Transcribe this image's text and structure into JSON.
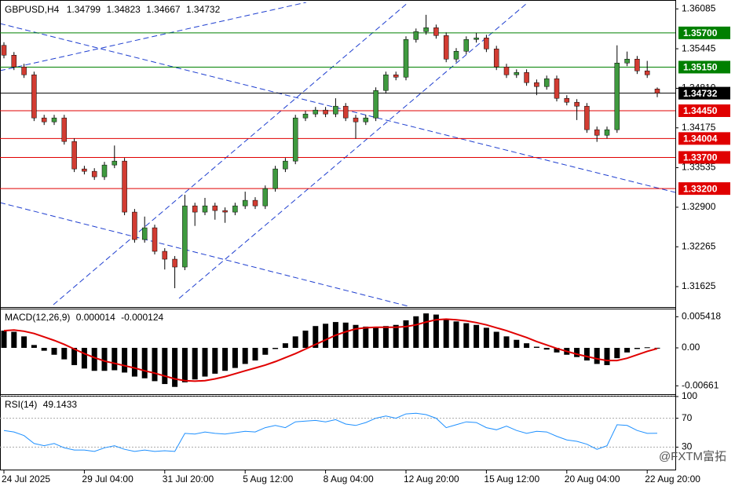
{
  "chart_data": [
    {
      "type": "candlestick",
      "symbol": "GBPUSD,H4",
      "categories": [
        "24 Jul 2025",
        null,
        null,
        null,
        null,
        null,
        null,
        null,
        "29 Jul 04:00",
        null,
        null,
        null,
        null,
        null,
        null,
        null,
        "31 Jul 20:00",
        null,
        null,
        null,
        null,
        null,
        null,
        null,
        "5 Aug 12:00",
        null,
        null,
        null,
        null,
        null,
        null,
        null,
        "8 Aug 04:00",
        null,
        null,
        null,
        null,
        null,
        null,
        null,
        "12 Aug 20:00",
        null,
        null,
        null,
        null,
        null,
        null,
        null,
        "15 Aug 12:00",
        null,
        null,
        null,
        null,
        null,
        null,
        null,
        "20 Aug 04:00",
        null,
        null,
        null,
        null,
        null,
        null,
        null,
        "22 Aug 20:00",
        null
      ],
      "open": [
        1.355,
        1.35342,
        1.35153,
        1.35027,
        1.34334,
        1.34271,
        1.34334,
        1.33956,
        1.33515,
        1.33477,
        1.33389,
        1.33578,
        1.33641,
        1.32822,
        1.32381,
        1.3257,
        1.32192,
        1.32066,
        1.3194,
        1.32922,
        1.32822,
        1.32922,
        1.32847,
        1.32822,
        1.32922,
        1.33011,
        1.32922,
        1.332,
        1.33515,
        1.33641,
        1.34334,
        1.34397,
        1.3446,
        1.34397,
        1.34523,
        1.34334,
        1.34271,
        1.34334,
        1.34775,
        1.35027,
        1.34989,
        1.35594,
        1.3572,
        1.35783,
        1.35657,
        1.35279,
        1.35405,
        1.35594,
        1.35619,
        1.35442,
        1.35153,
        1.35027,
        1.35064,
        1.34901,
        1.34838,
        1.34964,
        1.34649,
        1.34586,
        1.34523,
        1.34145,
        1.34056,
        1.34145,
        1.35216,
        1.35279,
        1.3509,
        1.34799
      ],
      "high": [
        1.3555,
        1.35392,
        1.35203,
        1.35077,
        1.34384,
        1.34384,
        1.34384,
        1.34006,
        1.33565,
        1.33527,
        1.33628,
        1.33891,
        1.33691,
        1.32872,
        1.3275,
        1.3262,
        1.32242,
        1.32116,
        1.331,
        1.32972,
        1.3305,
        1.32972,
        1.32897,
        1.32972,
        1.3315,
        1.33061,
        1.3325,
        1.33565,
        1.33691,
        1.34384,
        1.34447,
        1.3451,
        1.3451,
        1.3465,
        1.34573,
        1.34384,
        1.34384,
        1.34825,
        1.35077,
        1.35077,
        1.35644,
        1.3577,
        1.3599,
        1.35833,
        1.35707,
        1.35455,
        1.35644,
        1.357,
        1.35669,
        1.35492,
        1.35203,
        1.35114,
        1.35114,
        1.34951,
        1.35014,
        1.35014,
        1.34699,
        1.34636,
        1.34573,
        1.34195,
        1.34195,
        1.355,
        1.354,
        1.35329,
        1.3525,
        1.34823
      ],
      "low": [
        1.35292,
        1.35103,
        1.34977,
        1.34284,
        1.34221,
        1.34221,
        1.33906,
        1.33465,
        1.33427,
        1.33339,
        1.33339,
        1.33528,
        1.32772,
        1.32331,
        1.32331,
        1.32142,
        1.319,
        1.316,
        1.3189,
        1.326,
        1.32772,
        1.327,
        1.3265,
        1.32772,
        1.32872,
        1.32872,
        1.32872,
        1.3315,
        1.33465,
        1.33591,
        1.34284,
        1.34347,
        1.34347,
        1.34347,
        1.34284,
        1.34,
        1.34221,
        1.34284,
        1.34725,
        1.34939,
        1.34939,
        1.35544,
        1.3567,
        1.35607,
        1.35229,
        1.35229,
        1.35355,
        1.35544,
        1.35392,
        1.35103,
        1.34977,
        1.34977,
        1.34851,
        1.347,
        1.34788,
        1.34599,
        1.34536,
        1.343,
        1.34095,
        1.3395,
        1.34006,
        1.34095,
        1.35166,
        1.3504,
        1.34977,
        1.34667
      ],
      "close": [
        1.35342,
        1.35153,
        1.35027,
        1.34334,
        1.34271,
        1.34334,
        1.33956,
        1.33515,
        1.33477,
        1.33389,
        1.33578,
        1.33641,
        1.32822,
        1.32381,
        1.3257,
        1.32192,
        1.32066,
        1.3194,
        1.32922,
        1.32822,
        1.32922,
        1.32847,
        1.32822,
        1.32922,
        1.33011,
        1.32922,
        1.332,
        1.33515,
        1.33641,
        1.34334,
        1.34397,
        1.3446,
        1.34397,
        1.34523,
        1.34334,
        1.34271,
        1.34334,
        1.34775,
        1.35027,
        1.34989,
        1.35594,
        1.3572,
        1.35783,
        1.35657,
        1.35279,
        1.35405,
        1.35594,
        1.35619,
        1.35442,
        1.35153,
        1.35027,
        1.35064,
        1.34901,
        1.34838,
        1.34964,
        1.34649,
        1.34586,
        1.34523,
        1.34145,
        1.34056,
        1.34145,
        1.35216,
        1.35279,
        1.3509,
        1.35027,
        1.34732
      ],
      "up_color": "#3f9a3f",
      "down_color": "#d23c32",
      "wick_color": "#000000",
      "ylim": [
        1.3131,
        1.3619
      ],
      "yticks": [
        1.36085,
        1.35445,
        {
          "value": 1.3481,
          "label": "1.34810"
        },
        1.34175,
        1.33535,
        {
          "value": 1.329,
          "label": "1.32900"
        },
        1.32265,
        1.31625
      ],
      "levels": [
        {
          "value": 1.357,
          "label": "1.35700",
          "color": "#008000"
        },
        {
          "value": 1.3515,
          "label": "1.35150",
          "color": "#008000"
        },
        {
          "value": 1.34732,
          "color": "#000000"
        },
        {
          "value": 1.3445,
          "label": "1.34450",
          "color": "#e00000"
        },
        {
          "value": 1.34004,
          "color": "#e00000"
        },
        {
          "value": 1.337,
          "label": "1.33700",
          "color": "#e00000"
        },
        {
          "value": 1.332,
          "label": "1.33200",
          "color": "#e00000"
        }
      ]
    },
    {
      "type": "macd",
      "title": "MACD(12,26,9)",
      "histogram": [
        0.003,
        0.0028,
        0.002,
        0.0005,
        -0.0005,
        -0.0012,
        -0.002,
        -0.003,
        -0.0036,
        -0.004,
        -0.004,
        -0.0039,
        -0.0043,
        -0.005,
        -0.0053,
        -0.0058,
        -0.0063,
        -0.0068,
        -0.006,
        -0.0055,
        -0.005,
        -0.0045,
        -0.004,
        -0.0035,
        -0.0028,
        -0.0022,
        -0.0012,
        -0.0002,
        0.0008,
        0.002,
        0.003,
        0.0038,
        0.0042,
        0.0045,
        0.0044,
        0.004,
        0.0037,
        0.0036,
        0.0038,
        0.004,
        0.0048,
        0.0055,
        0.006,
        0.0058,
        0.005,
        0.0046,
        0.0043,
        0.004,
        0.0035,
        0.0028,
        0.002,
        0.0014,
        0.0008,
        0.0002,
        -0.0003,
        -0.0008,
        -0.0012,
        -0.0016,
        -0.0022,
        -0.0028,
        -0.003,
        -0.0018,
        -0.0008,
        -0.0002,
        0.0001,
        1.4e-05
      ],
      "signal": [
        0.003,
        0.0031,
        0.0029,
        0.0025,
        0.0019,
        0.0013,
        0.0006,
        -0.0002,
        -0.001,
        -0.0017,
        -0.0023,
        -0.0027,
        -0.0031,
        -0.0035,
        -0.004,
        -0.0044,
        -0.0049,
        -0.0054,
        -0.0057,
        -0.0058,
        -0.0057,
        -0.0054,
        -0.005,
        -0.0045,
        -0.004,
        -0.0035,
        -0.003,
        -0.0024,
        -0.0017,
        -0.001,
        -0.0002,
        0.0006,
        0.0014,
        0.0022,
        0.0028,
        0.0033,
        0.0035,
        0.0036,
        0.0036,
        0.0036,
        0.0037,
        0.004,
        0.0045,
        0.0049,
        0.005,
        0.0049,
        0.0047,
        0.0044,
        0.004,
        0.0035,
        0.003,
        0.0024,
        0.0018,
        0.0011,
        0.0005,
        -0.0001,
        -0.0006,
        -0.0011,
        -0.0015,
        -0.0019,
        -0.0022,
        -0.0022,
        -0.0018,
        -0.0012,
        -0.0006,
        -0.000124
      ],
      "histogram_color": "#000000",
      "signal_color": "#e00000",
      "ylim": [
        -0.00807,
        0.0067
      ],
      "yticks": [
        0.005418,
        {
          "value": 0,
          "label": "0.00"
        },
        -0.00661
      ]
    },
    {
      "type": "line",
      "title": "RSI(14)",
      "values": [
        53,
        51,
        46,
        35,
        32,
        35,
        29,
        26,
        26,
        24,
        29,
        32,
        27,
        24,
        26,
        24,
        25,
        24,
        49,
        48,
        51,
        49,
        48,
        50,
        52,
        51,
        57,
        60,
        57,
        65,
        66,
        67,
        65,
        68,
        62,
        60,
        64,
        70,
        73,
        70,
        76,
        77,
        75,
        70,
        57,
        61,
        65,
        64,
        57,
        54,
        59,
        53,
        49,
        52,
        51,
        45,
        40,
        38,
        34,
        27,
        32,
        61,
        60,
        53,
        49,
        49.1433
      ],
      "color": "#1e90ff",
      "ylim": [
        0,
        100
      ],
      "yticks": [
        100,
        70,
        30
      ]
    }
  ],
  "watermark": "@FXTM富拓"
}
